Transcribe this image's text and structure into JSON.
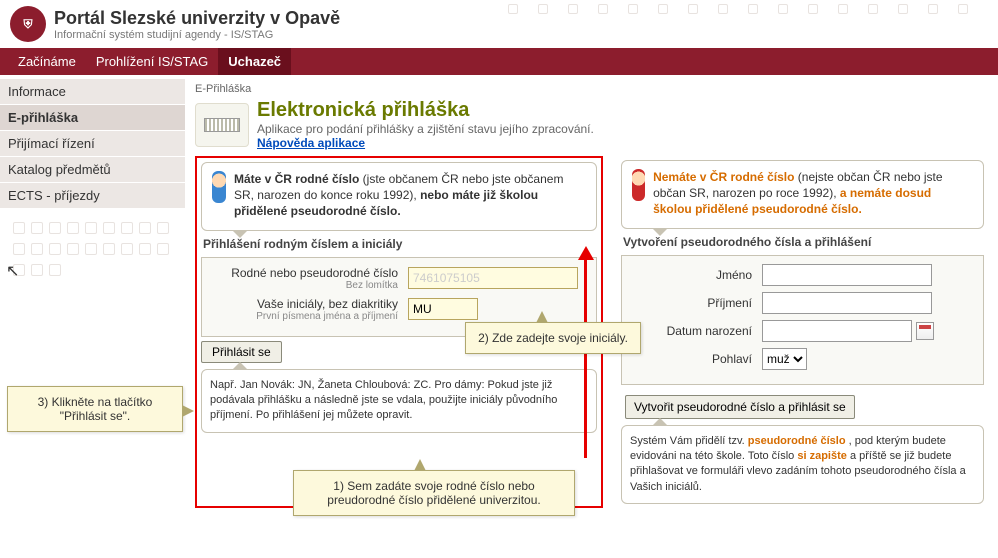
{
  "header": {
    "title": "Portál Slezské univerzity v Opavě",
    "subtitle": "Informační systém studijní agendy - IS/STAG"
  },
  "topnav": {
    "items": [
      "Začínáme",
      "Prohlížení IS/STAG",
      "Uchazeč"
    ],
    "active": 2
  },
  "sidebar": {
    "items": [
      "Informace",
      "E-přihláška",
      "Přijímací řízení",
      "Katalog předmětů",
      "ECTS - příjezdy"
    ],
    "active": 1
  },
  "page": {
    "crumb": "E-Přihláška",
    "title": "Elektronická přihláška",
    "subtitle": "Aplikace pro podání přihlášky a zjištění stavu jejího zpracování.",
    "help": "Nápověda aplikace"
  },
  "left": {
    "person1": "Máte v ČR rodné číslo",
    "person2": "(jste občanem ČR nebo jste občanem SR, narozen do konce roku 1992), ",
    "person3": "nebo máte již školou přidělené pseudorodné číslo.",
    "section": "Přihlášení rodným číslem a iniciály",
    "rodne_label": "Rodné nebo pseudorodné číslo",
    "rodne_hint": "Bez lomítka",
    "rodne_value": "7461075105",
    "init_label": "Vaše iniciály, bez diakritiky",
    "init_hint": "První písmena jména a příjmení",
    "init_value": "MU",
    "login_btn": "Přihlásit se",
    "example": "Např. Jan Novák: JN, Žaneta Chloubová: ZC. Pro dámy: Pokud jste již podávala přihlášku a následně jste se vdala, použijte iniciály původního příjmení. Po přihlášení jej můžete opravit."
  },
  "right": {
    "person1": "Nemáte v ČR rodné číslo",
    "person2": " (nejste občan ČR nebo jste občan SR, narozen po roce 1992), ",
    "person3": "a nemáte dosud školou přidělené pseudorodné číslo.",
    "section": "Vytvoření pseudorodného čísla a přihlášení",
    "jmeno": "Jméno",
    "prijmeni": "Příjmení",
    "datum": "Datum narození",
    "pohlavi": "Pohlaví",
    "pohlavi_value": "muž",
    "create_btn": "Vytvořit pseudorodné číslo a přihlásit se",
    "note1": "Systém Vám přidělí tzv. ",
    "note2": "pseudorodné číslo",
    "note3": ", pod kterým budete evidováni na této škole. Toto číslo ",
    "note4": "si zapište",
    "note5": " a příště se již budete přihlašovat ve formuláři vlevo zadáním tohoto pseudorodného čísla a Vašich iniciálů."
  },
  "callouts": {
    "c1": "3) Klikněte na tlačítko \"Přihlásit se\".",
    "c2": "2) Zde zadejte svoje iniciály.",
    "c3": "1) Sem zadáte svoje rodné číslo nebo preudorodné číslo přidělené univerzitou."
  },
  "colors": {
    "brand": "#8c1d2d",
    "red": "#e60000",
    "olive": "#6a7a00",
    "orange": "#d66c00",
    "link": "#004bbb"
  }
}
